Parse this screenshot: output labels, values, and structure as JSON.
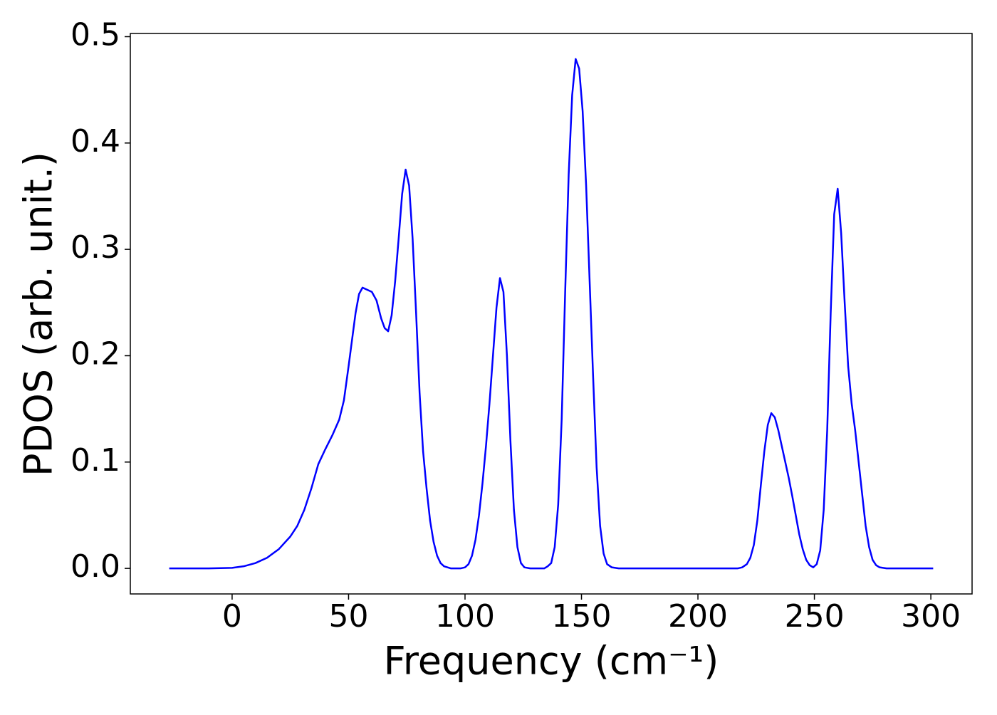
{
  "chart_data": {
    "type": "line",
    "xlabel": "Frequency (cm⁻¹)",
    "ylabel": "PDOS (arb. unit.)",
    "color": "#0000ff",
    "x": [
      -27,
      -10,
      0,
      5,
      10,
      15,
      20,
      25,
      28,
      31,
      34,
      37,
      40,
      43,
      46,
      48,
      50,
      51.5,
      53,
      54.5,
      56,
      58,
      60,
      62,
      64,
      65.5,
      67,
      68.5,
      70,
      71.5,
      73,
      74.5,
      76,
      77.5,
      79,
      80.5,
      82,
      83.5,
      85,
      86.5,
      88,
      89.5,
      91,
      94,
      98,
      100,
      101.5,
      103,
      104.5,
      106,
      107.5,
      109,
      110.5,
      112,
      113.5,
      115,
      116.5,
      118,
      119.5,
      121,
      122.5,
      124,
      125.5,
      128,
      134,
      135.5,
      137,
      138.5,
      140,
      141.5,
      143,
      144.5,
      146,
      147.5,
      149,
      150.5,
      152,
      153.5,
      155,
      156.5,
      158,
      159.5,
      161,
      163,
      166,
      217,
      219,
      221,
      222.5,
      224,
      225.5,
      227,
      228.5,
      230,
      231.5,
      233,
      234.5,
      236,
      237.5,
      239,
      240.5,
      242,
      243.5,
      245,
      246.5,
      248,
      249.5,
      251,
      252.5,
      254,
      255.5,
      257,
      258.5,
      260,
      261.5,
      263,
      264.5,
      266,
      267.5,
      269,
      270.5,
      272,
      273.5,
      275,
      276.5,
      278,
      281,
      301
    ],
    "values": [
      0,
      0,
      0.0005,
      0.002,
      0.005,
      0.01,
      0.018,
      0.03,
      0.04,
      0.055,
      0.075,
      0.098,
      0.112,
      0.125,
      0.14,
      0.158,
      0.19,
      0.215,
      0.24,
      0.258,
      0.264,
      0.262,
      0.26,
      0.252,
      0.235,
      0.226,
      0.223,
      0.238,
      0.27,
      0.31,
      0.352,
      0.375,
      0.36,
      0.31,
      0.24,
      0.165,
      0.11,
      0.075,
      0.045,
      0.025,
      0.012,
      0.005,
      0.002,
      0,
      0,
      0.001,
      0.004,
      0.012,
      0.027,
      0.05,
      0.08,
      0.115,
      0.155,
      0.2,
      0.245,
      0.273,
      0.26,
      0.2,
      0.12,
      0.055,
      0.02,
      0.005,
      0.001,
      0,
      0,
      0.002,
      0.005,
      0.02,
      0.06,
      0.14,
      0.26,
      0.37,
      0.445,
      0.479,
      0.47,
      0.43,
      0.36,
      0.27,
      0.18,
      0.095,
      0.04,
      0.014,
      0.004,
      0.001,
      0,
      0,
      0.001,
      0.004,
      0.01,
      0.022,
      0.045,
      0.078,
      0.11,
      0.135,
      0.146,
      0.142,
      0.13,
      0.115,
      0.1,
      0.085,
      0.068,
      0.05,
      0.032,
      0.018,
      0.008,
      0.003,
      0.001,
      0.004,
      0.017,
      0.055,
      0.13,
      0.24,
      0.333,
      0.357,
      0.315,
      0.25,
      0.19,
      0.155,
      0.13,
      0.1,
      0.07,
      0.04,
      0.02,
      0.008,
      0.003,
      0.001,
      0,
      0
    ],
    "xlim": [
      -43.7,
      317.7
    ],
    "xticks": [
      0,
      50,
      100,
      150,
      200,
      250,
      300
    ],
    "ylim": [
      -0.024,
      0.503
    ],
    "yticks": [
      {
        "value": 0,
        "label": "0.0"
      },
      0.1,
      0.2,
      0.3,
      0.4,
      0.5
    ]
  }
}
